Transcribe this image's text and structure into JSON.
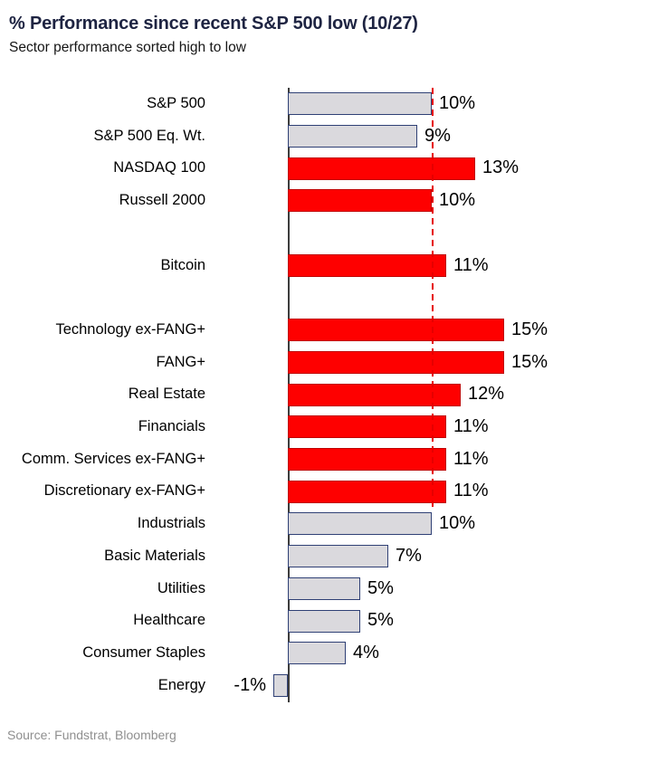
{
  "header": {
    "title": "% Performance since recent S&P 500 low (10/27)",
    "subtitle": "Sector performance sorted high to low"
  },
  "source": "Source: Fundstrat, Bloomberg",
  "colors": {
    "highlight_bar": "#fe0000",
    "highlight_bar_border": "#bf0000",
    "neutral_bar": "#dad9dd",
    "neutral_bar_border": "#2f4075",
    "reference_line": "#e60000",
    "axis_line": "#3d3d3d",
    "title_text": "#1e2442",
    "source_text": "#8f8f8f"
  },
  "chart_data": {
    "type": "bar",
    "orientation": "horizontal",
    "title": "% Performance since recent S&P 500 low (10/27)",
    "subtitle": "Sector performance sorted high to low",
    "value_unit": "%",
    "xlim": [
      -1,
      16
    ],
    "grid": false,
    "legend": false,
    "reference_line": {
      "value": 10,
      "style": "dashed",
      "color": "#e60000",
      "note": "S&P 500 level"
    },
    "categories": [
      "S&P 500",
      "S&P 500 Eq. Wt.",
      "NASDAQ 100",
      "Russell 2000",
      "Bitcoin",
      "Technology ex-FANG+",
      "FANG+",
      "Real Estate",
      "Financials",
      "Comm. Services ex-FANG+",
      "Discretionary ex-FANG+",
      "Industrials",
      "Basic Materials",
      "Utilities",
      "Healthcare",
      "Consumer Staples",
      "Energy"
    ],
    "values": [
      10,
      9,
      13,
      10,
      11,
      15,
      15,
      12,
      11,
      11,
      11,
      10,
      7,
      5,
      5,
      4,
      -1
    ],
    "layout_rows": [
      {
        "label": "S&P 500",
        "value": 10,
        "display": "10%",
        "color": "gray"
      },
      {
        "label": "S&P 500 Eq. Wt.",
        "value": 9,
        "display": "9%",
        "color": "gray"
      },
      {
        "label": "NASDAQ 100",
        "value": 13,
        "display": "13%",
        "color": "red"
      },
      {
        "label": "Russell 2000",
        "value": 10,
        "display": "10%",
        "color": "red"
      },
      {
        "spacer": true
      },
      {
        "label": "Bitcoin",
        "value": 11,
        "display": "11%",
        "color": "red"
      },
      {
        "spacer": true
      },
      {
        "label": "Technology ex-FANG+",
        "value": 15,
        "display": "15%",
        "color": "red"
      },
      {
        "label": "FANG+",
        "value": 15,
        "display": "15%",
        "color": "red"
      },
      {
        "label": "Real Estate",
        "value": 12,
        "display": "12%",
        "color": "red"
      },
      {
        "label": "Financials",
        "value": 11,
        "display": "11%",
        "color": "red"
      },
      {
        "label": "Comm. Services ex-FANG+",
        "value": 11,
        "display": "11%",
        "color": "red"
      },
      {
        "label": "Discretionary ex-FANG+",
        "value": 11,
        "display": "11%",
        "color": "red"
      },
      {
        "label": "Industrials",
        "value": 10,
        "display": "10%",
        "color": "gray"
      },
      {
        "label": "Basic Materials",
        "value": 7,
        "display": "7%",
        "color": "gray"
      },
      {
        "label": "Utilities",
        "value": 5,
        "display": "5%",
        "color": "gray"
      },
      {
        "label": "Healthcare",
        "value": 5,
        "display": "5%",
        "color": "gray"
      },
      {
        "label": "Consumer Staples",
        "value": 4,
        "display": "4%",
        "color": "gray"
      },
      {
        "label": "Energy",
        "value": -1,
        "display": "-1%",
        "color": "gray"
      }
    ]
  }
}
